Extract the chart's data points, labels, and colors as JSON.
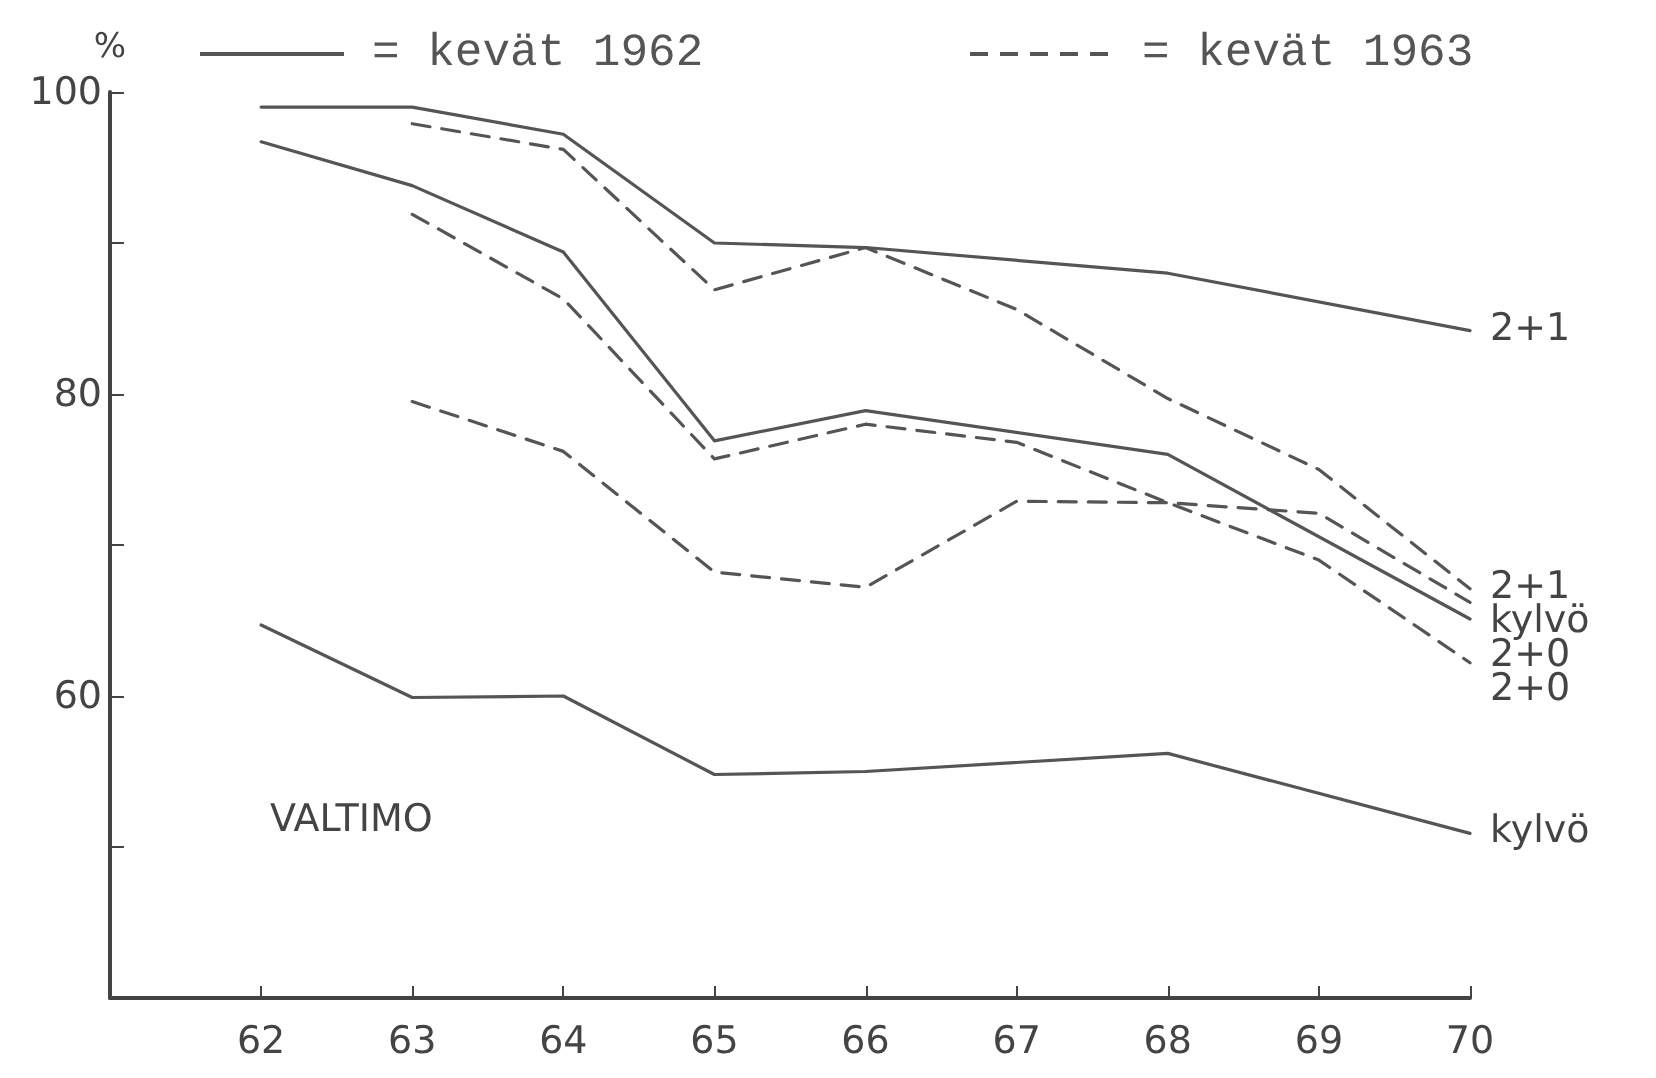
{
  "chart_data": {
    "type": "line",
    "ylabel": "%",
    "xlim": [
      61,
      70
    ],
    "xticks": [
      62,
      63,
      64,
      65,
      66,
      67,
      68,
      69,
      70
    ],
    "ylim": [
      40,
      100
    ],
    "yticks": [
      {
        "value": 50,
        "label": null
      },
      60,
      {
        "value": 70,
        "label": null
      },
      80,
      {
        "value": 90,
        "label": null
      },
      100
    ],
    "grid": false,
    "marker": "none",
    "series": [
      {
        "name": "2+1",
        "color": "#555555",
        "line_style": "solid",
        "x": [
          62,
          63,
          64,
          65,
          66,
          68,
          70
        ],
        "values": [
          99,
          99,
          97.2,
          90,
          89.7,
          88,
          84.2
        ]
      },
      {
        "name": "2+0",
        "color": "#555555",
        "line_style": "solid",
        "x": [
          62,
          63,
          64,
          65,
          66,
          68,
          70
        ],
        "values": [
          96.7,
          93.8,
          89.4,
          76.9,
          78.9,
          76,
          65.1
        ]
      },
      {
        "name": "kylvö",
        "color": "#555555",
        "line_style": "solid",
        "x": [
          62,
          63,
          64,
          65,
          66,
          68,
          70
        ],
        "values": [
          64.7,
          59.9,
          60,
          54.8,
          55,
          56.2,
          50.9
        ]
      },
      {
        "name": "2+1",
        "color": "#555555",
        "line_style": "dashed",
        "x": [
          63,
          64,
          65,
          66,
          67,
          68,
          69,
          70
        ],
        "values": [
          97.9,
          96.2,
          86.9,
          89.7,
          85.6,
          79.7,
          75,
          67.1
        ]
      },
      {
        "name": "kylvö",
        "color": "#555555",
        "line_style": "dashed",
        "x": [
          63,
          64,
          65,
          66,
          67,
          68,
          69,
          70
        ],
        "values": [
          79.5,
          76.2,
          68.2,
          67.2,
          72.9,
          72.8,
          72.1,
          66.2
        ]
      },
      {
        "name": "2+0",
        "color": "#555555",
        "line_style": "dashed",
        "x": [
          63,
          64,
          65,
          66,
          67,
          68,
          69,
          70
        ],
        "values": [
          91.9,
          86.3,
          75.7,
          78,
          76.8,
          72.8,
          69,
          62.2
        ]
      }
    ],
    "annotations": [
      "= kevät 1962",
      "= kevät 1963",
      "VALTIMO"
    ]
  }
}
